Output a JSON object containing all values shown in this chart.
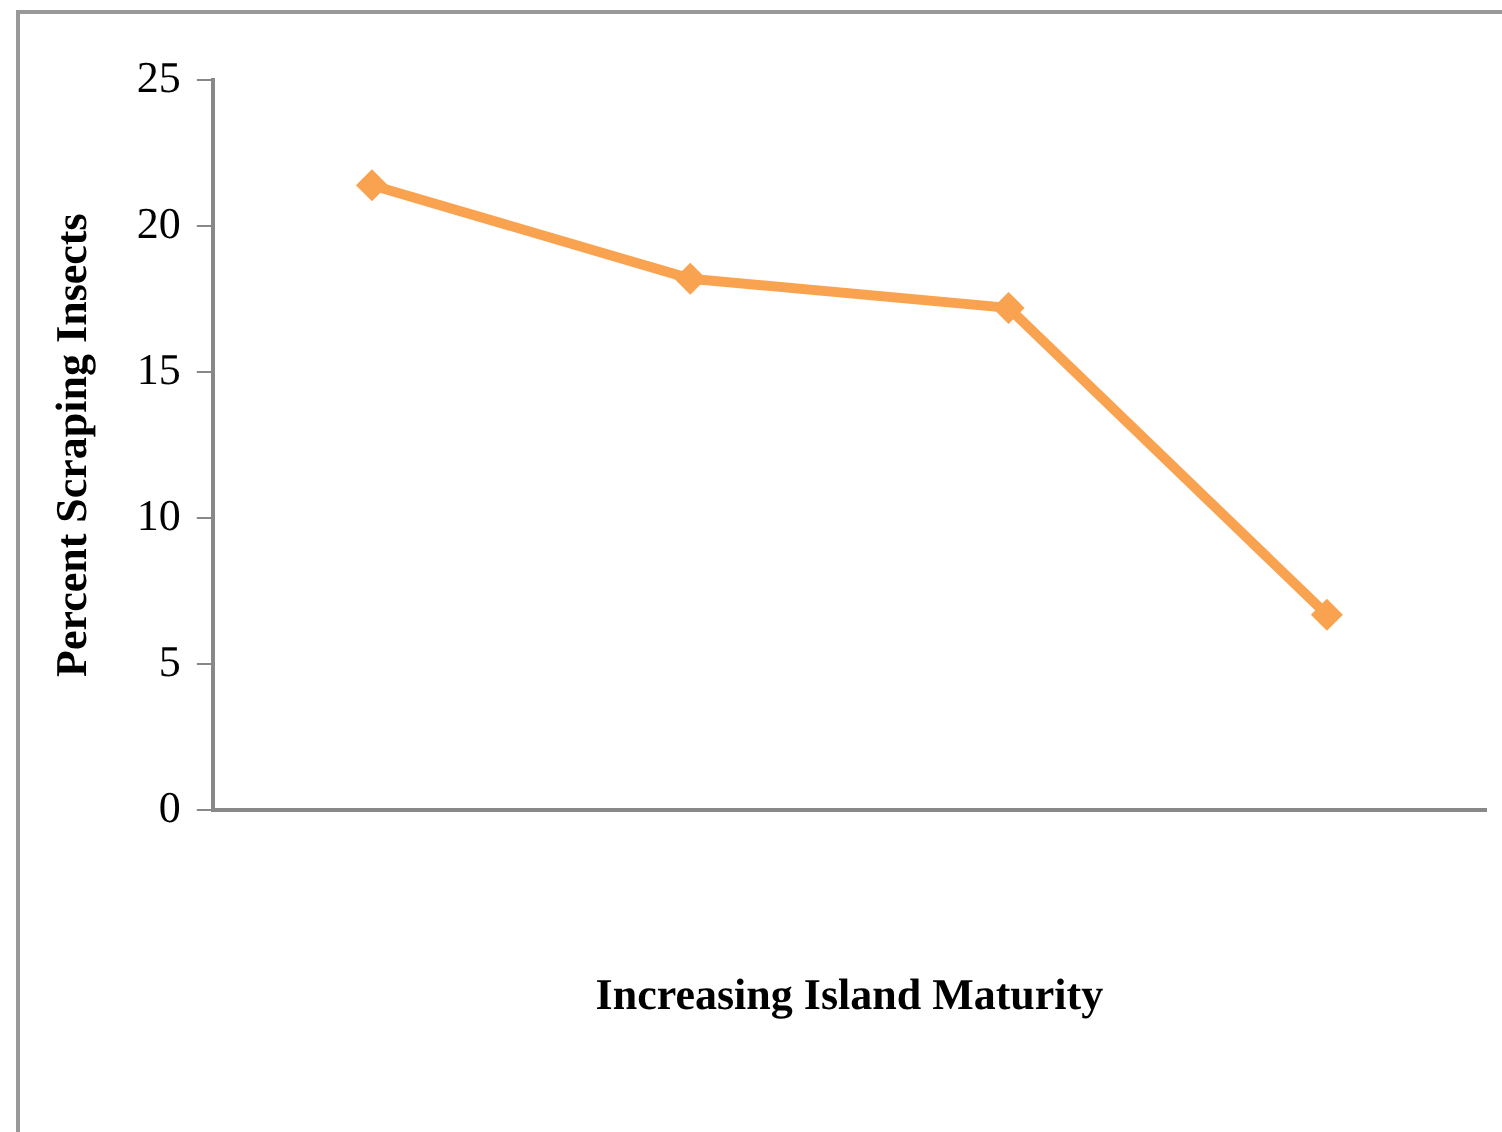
{
  "chart_data": {
    "type": "line",
    "xlabel": "Increasing Island Maturity",
    "ylabel": "Percent Scraping Insects",
    "categories": [
      null,
      null,
      null,
      null
    ],
    "series": [
      {
        "color": "#f9a24f",
        "values": [
          21.4,
          18.2,
          17.2,
          6.7
        ]
      }
    ],
    "ylim": [
      0,
      25
    ],
    "yticks": [
      0,
      5,
      10,
      15,
      20,
      25
    ],
    "grid": false,
    "legend": false,
    "marker": "diamond",
    "line_style": "solid"
  }
}
